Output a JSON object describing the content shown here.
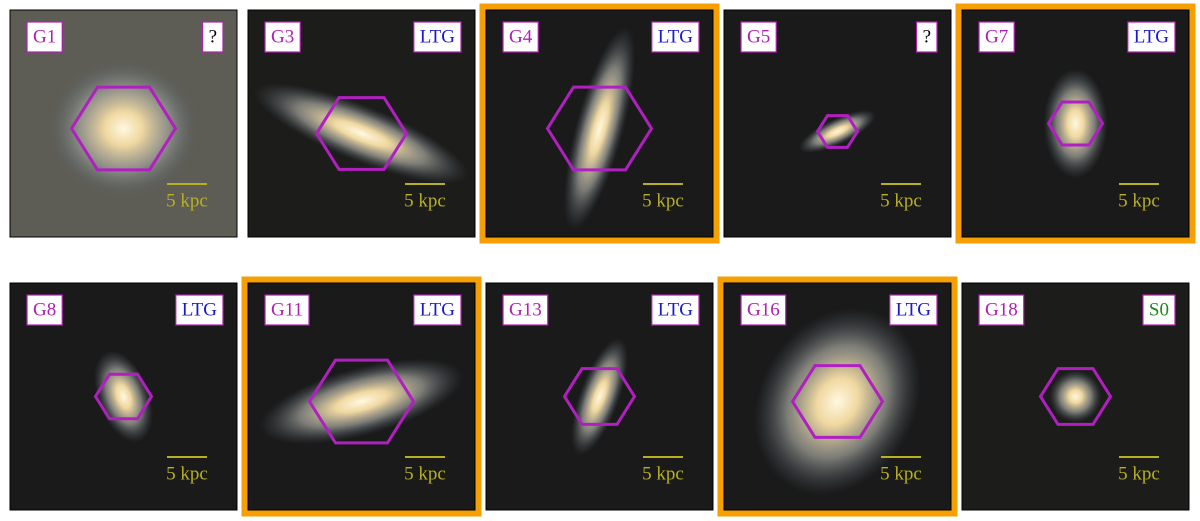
{
  "panels": [
    {
      "id": "G1",
      "class": "?",
      "class_color": "#000000",
      "scale": "5 kpc",
      "highlighted": false
    },
    {
      "id": "G3",
      "class": "LTG",
      "class_color": "#1a1ad0",
      "scale": "5 kpc",
      "highlighted": false
    },
    {
      "id": "G4",
      "class": "LTG",
      "class_color": "#1a1ad0",
      "scale": "5 kpc",
      "highlighted": true
    },
    {
      "id": "G5",
      "class": "?",
      "class_color": "#000000",
      "scale": "5 kpc",
      "highlighted": false
    },
    {
      "id": "G7",
      "class": "LTG",
      "class_color": "#1a1ad0",
      "scale": "5 kpc",
      "highlighted": true
    },
    {
      "id": "G8",
      "class": "LTG",
      "class_color": "#1a1ad0",
      "scale": "5 kpc",
      "highlighted": false
    },
    {
      "id": "G11",
      "class": "LTG",
      "class_color": "#1a1ad0",
      "scale": "5 kpc",
      "highlighted": true
    },
    {
      "id": "G13",
      "class": "LTG",
      "class_color": "#1a1ad0",
      "scale": "5 kpc",
      "highlighted": false
    },
    {
      "id": "G16",
      "class": "LTG",
      "class_color": "#1a1ad0",
      "scale": "5 kpc",
      "highlighted": true
    },
    {
      "id": "G18",
      "class": "S0",
      "class_color": "#1a8a1a",
      "scale": "5 kpc",
      "highlighted": false
    }
  ]
}
